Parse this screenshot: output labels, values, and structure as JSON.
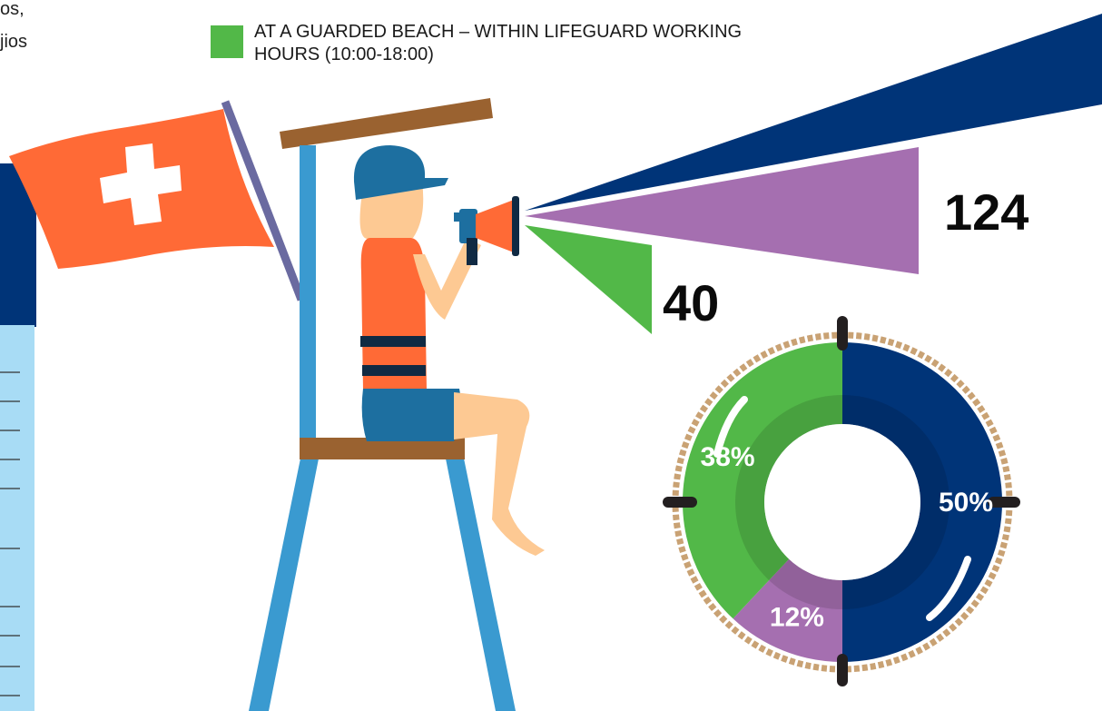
{
  "intro_fragment": [
    "os,",
    "jios"
  ],
  "legend": {
    "lines": [
      "AT A GUARDED BEACH – WITHIN LIFEGUARD WORKING",
      "HOURS (10:00-18:00)"
    ],
    "color": "#52b848"
  },
  "chart_data": [
    {
      "type": "beam",
      "values": [
        40,
        124
      ],
      "colors": [
        "#52b848",
        "#a56fb0"
      ]
    },
    {
      "type": "pie",
      "values": [
        50,
        12,
        38
      ],
      "value_labels": [
        "50%",
        "12%",
        "38%"
      ],
      "colors": [
        "#003478",
        "#a56fb0",
        "#52b848"
      ]
    }
  ]
}
